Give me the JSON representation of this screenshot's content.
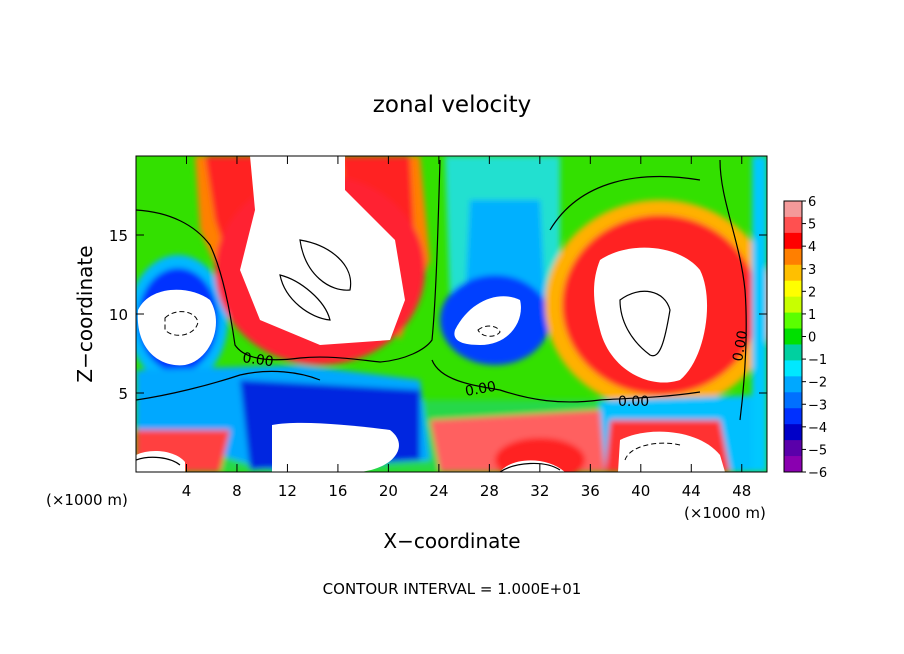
{
  "chart_data": {
    "type": "heatmap",
    "title": "zonal velocity",
    "xlabel": "X−coordinate",
    "ylabel": "Z−coordinate",
    "x_unit_left": "(×1000 m)",
    "x_unit_right": "(×1000 m)",
    "xlim": [
      0,
      50
    ],
    "ylim": [
      0,
      20
    ],
    "xticks": [
      4,
      8,
      12,
      16,
      20,
      24,
      28,
      32,
      36,
      40,
      44,
      48
    ],
    "yticks": [
      5,
      10,
      15
    ],
    "footer": "CONTOUR INTERVAL = 1.000E+01",
    "colorbar": {
      "min": -6,
      "max": 6,
      "labels": [
        "6",
        "5",
        "4",
        "3",
        "2",
        "1",
        "0",
        "−1",
        "−2",
        "−3",
        "−4",
        "−5",
        "−6"
      ],
      "colors": [
        "#f49a9a",
        "#ff5050",
        "#ff0000",
        "#ff7f00",
        "#ffbf00",
        "#ffff00",
        "#c8ff00",
        "#5aff00",
        "#00e000",
        "#00d0a0",
        "#00e8ff",
        "#00a8ff",
        "#0070ff",
        "#0030ff",
        "#0000c8",
        "#5a00aa",
        "#8a00b0"
      ]
    },
    "contour_labels": [
      "0.00",
      "0.00",
      "0.00",
      "0.00"
    ]
  }
}
